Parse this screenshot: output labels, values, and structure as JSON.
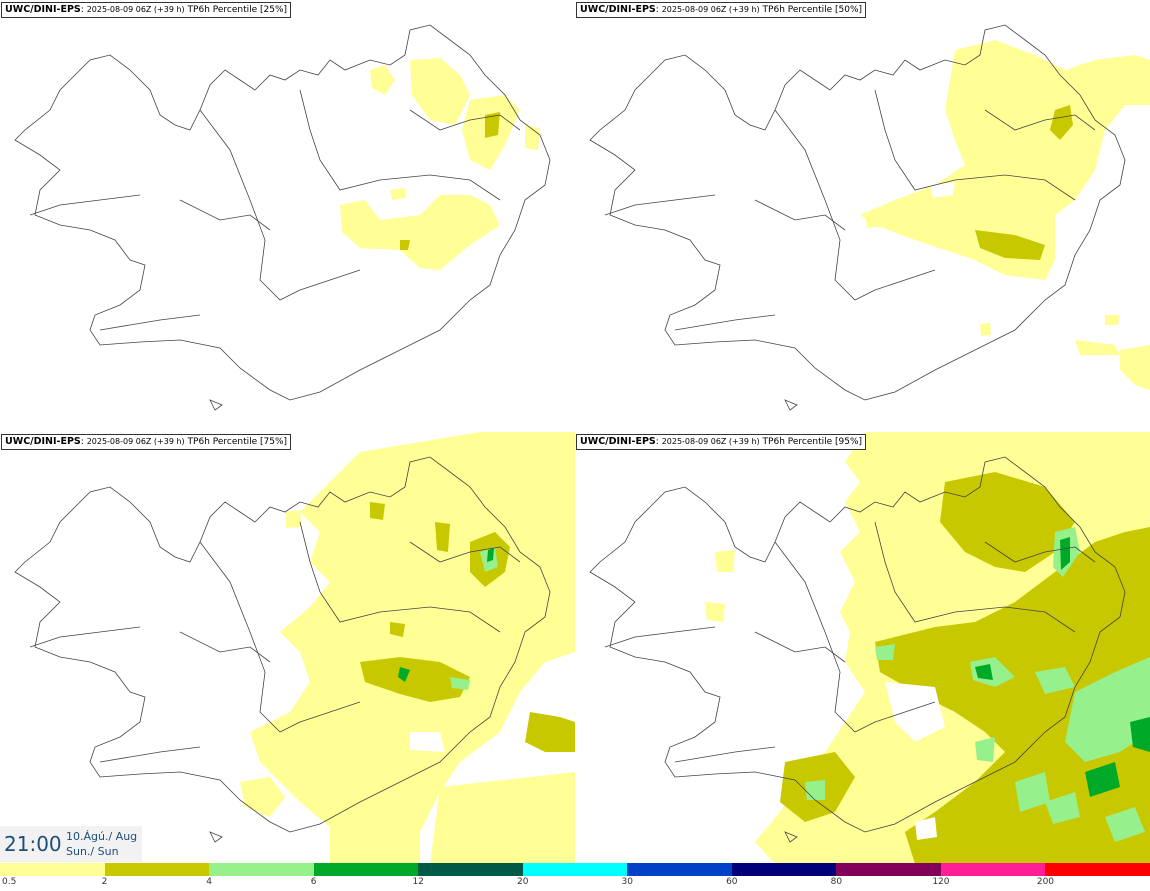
{
  "panels": [
    {
      "model": "UWC/DINI-EPS",
      "run": "2025-08-09 06Z (+39 h)",
      "field": "TP6h Percentile [25%]"
    },
    {
      "model": "UWC/DINI-EPS",
      "run": "2025-08-09 06Z (+39 h)",
      "field": "TP6h Percentile [50%]"
    },
    {
      "model": "UWC/DINI-EPS",
      "run": "2025-08-09 06Z (+39 h)",
      "field": "TP6h Percentile [75%]"
    },
    {
      "model": "UWC/DINI-EPS",
      "run": "2025-08-09 06Z (+39 h)",
      "field": "TP6h Percentile [95%]"
    }
  ],
  "valid_time": {
    "time": "21:00",
    "date": "10.Ágú./ Aug",
    "day": "Sun./ Sun"
  },
  "legend": {
    "colors": [
      "#ffff96",
      "#c8c800",
      "#96f08c",
      "#00aa28",
      "#005a46",
      "#00ffff",
      "#0041c8",
      "#000078",
      "#82005a",
      "#ff1e96",
      "#ff0000"
    ],
    "ticks": [
      "0.5",
      "2",
      "4",
      "6",
      "12",
      "20",
      "30",
      "60",
      "80",
      "120",
      "200"
    ]
  }
}
